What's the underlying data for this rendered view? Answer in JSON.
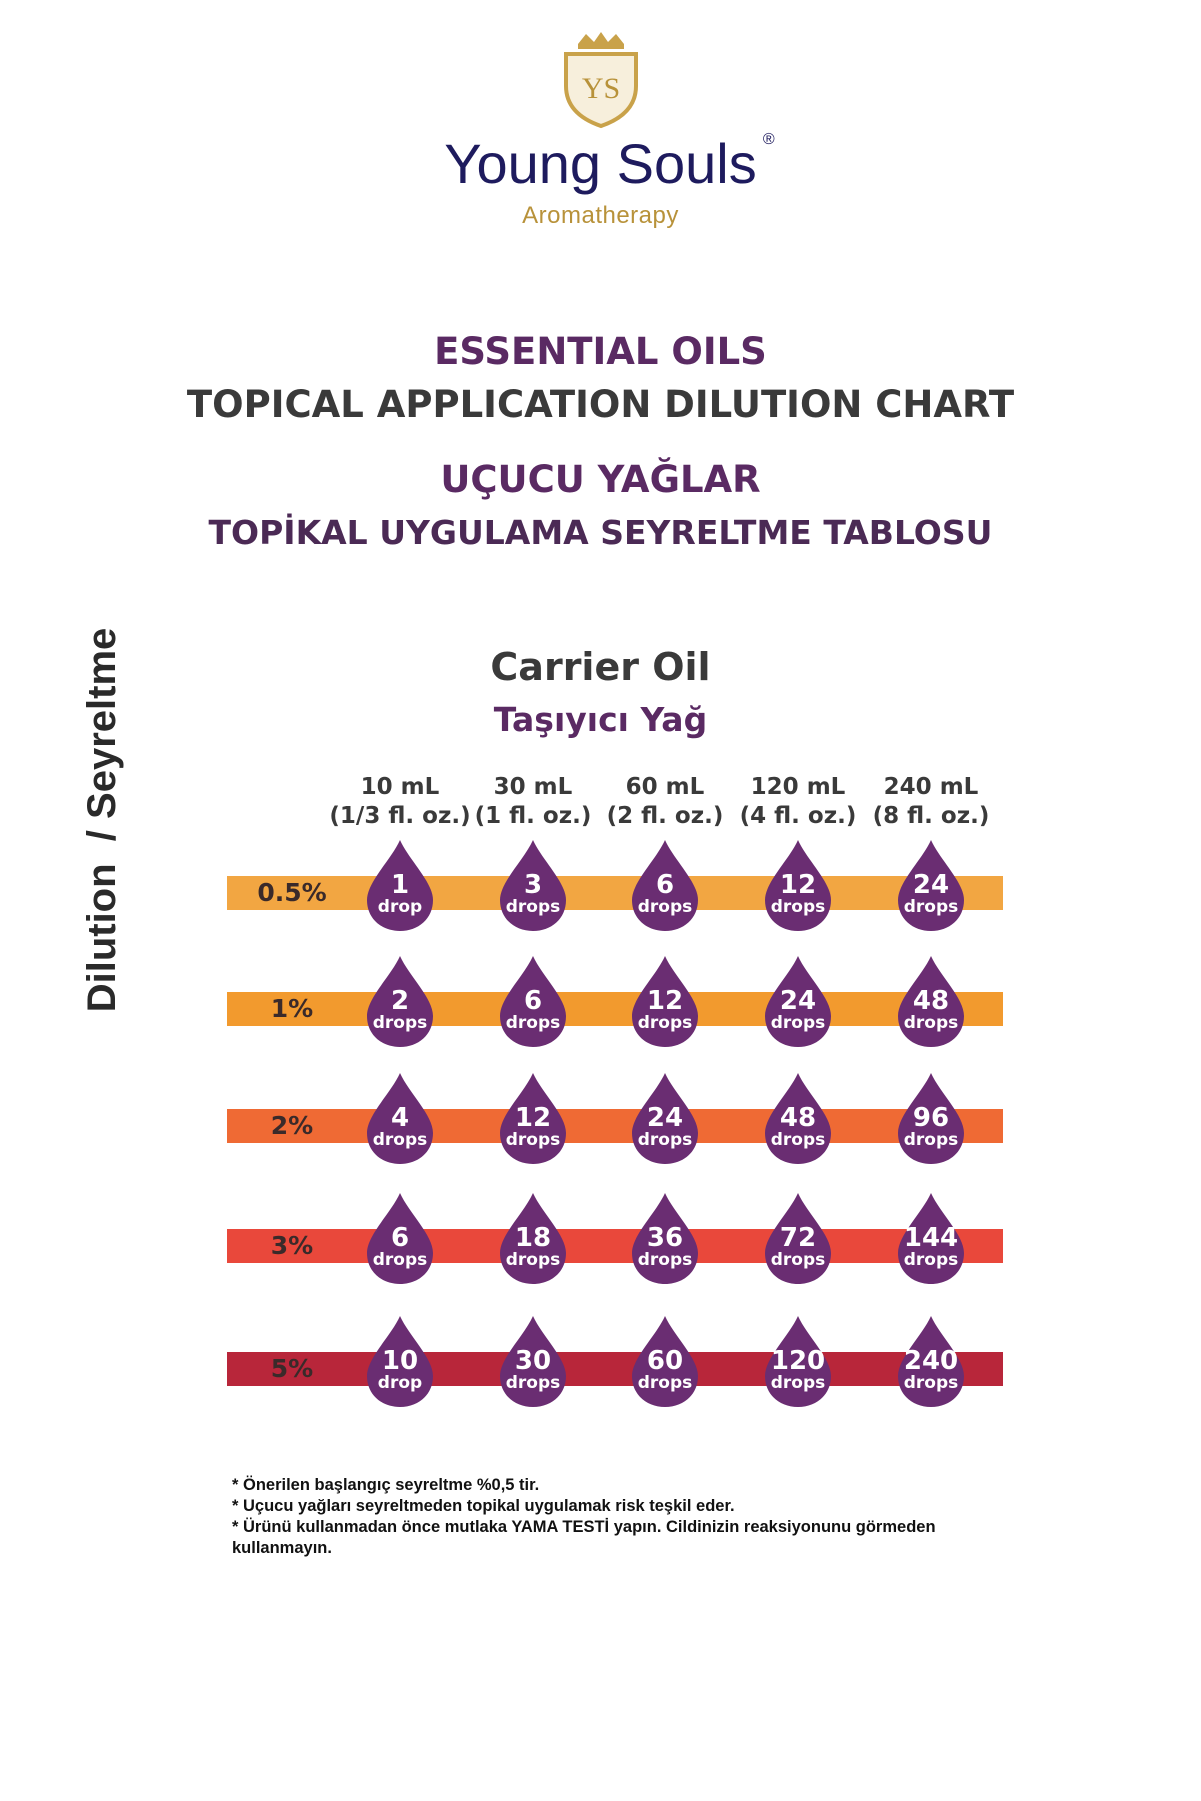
{
  "brand": {
    "name": "Young Souls",
    "registered": "®",
    "tagline": "Aromatherapy",
    "monogram": "YS",
    "colors": {
      "navy": "#1e1b5e",
      "gold": "#c9a24a"
    }
  },
  "title": {
    "en_line1": "ESSENTIAL OILS",
    "en_line2": "TOPICAL APPLICATION DILUTION CHART",
    "tr_line1": "UÇUCU YAĞLAR",
    "tr_line2": "TOPİKAL UYGULAMA SEYRELTME TABLOSU"
  },
  "carrier": {
    "en": "Carrier Oil",
    "tr": "Taşıyıcı Yağ"
  },
  "columns": [
    {
      "ml": "10 mL",
      "oz": "(1/3 fl. oz.)"
    },
    {
      "ml": "30 mL",
      "oz": "(1 fl. oz.)"
    },
    {
      "ml": "60 mL",
      "oz": "(2 fl. oz.)"
    },
    {
      "ml": "120 mL",
      "oz": "(4 fl. oz.)"
    },
    {
      "ml": "240 mL",
      "oz": "(8 fl. oz.)"
    }
  ],
  "y_axis": {
    "label_en": "Dilution",
    "separator": "/",
    "label_tr": "Seyreltme"
  },
  "rows": [
    {
      "dilution": "0.5%",
      "color": "#f2a642",
      "cells": [
        {
          "n": "1",
          "u": "drop"
        },
        {
          "n": "3",
          "u": "drops"
        },
        {
          "n": "6",
          "u": "drops"
        },
        {
          "n": "12",
          "u": "drops"
        },
        {
          "n": "24",
          "u": "drops"
        }
      ]
    },
    {
      "dilution": "1%",
      "color": "#f29a2e",
      "cells": [
        {
          "n": "2",
          "u": "drops"
        },
        {
          "n": "6",
          "u": "drops"
        },
        {
          "n": "12",
          "u": "drops"
        },
        {
          "n": "24",
          "u": "drops"
        },
        {
          "n": "48",
          "u": "drops"
        }
      ]
    },
    {
      "dilution": "2%",
      "color": "#ef6a34",
      "cells": [
        {
          "n": "4",
          "u": "drops"
        },
        {
          "n": "12",
          "u": "drops"
        },
        {
          "n": "24",
          "u": "drops"
        },
        {
          "n": "48",
          "u": "drops"
        },
        {
          "n": "96",
          "u": "drops"
        }
      ]
    },
    {
      "dilution": "3%",
      "color": "#e9483b",
      "cells": [
        {
          "n": "6",
          "u": "drops"
        },
        {
          "n": "18",
          "u": "drops"
        },
        {
          "n": "36",
          "u": "drops"
        },
        {
          "n": "72",
          "u": "drops"
        },
        {
          "n": "144",
          "u": "drops"
        }
      ]
    },
    {
      "dilution": "5%",
      "color": "#b8263a",
      "cells": [
        {
          "n": "10",
          "u": "drop"
        },
        {
          "n": "30",
          "u": "drops"
        },
        {
          "n": "60",
          "u": "drops"
        },
        {
          "n": "120",
          "u": "drops"
        },
        {
          "n": "240",
          "u": "drops"
        }
      ]
    }
  ],
  "drop_color": "#6a2d72",
  "notes": [
    "* Önerilen başlangıç seyreltme %0,5 tir.",
    "* Uçucu yağları seyreltmeden topikal uygulamak risk teşkil eder.",
    "* Ürünü kullanmadan önce mutlaka YAMA TESTİ yapın. Cildinizin reaksiyonunu görmeden",
    "kullanmayın."
  ]
}
